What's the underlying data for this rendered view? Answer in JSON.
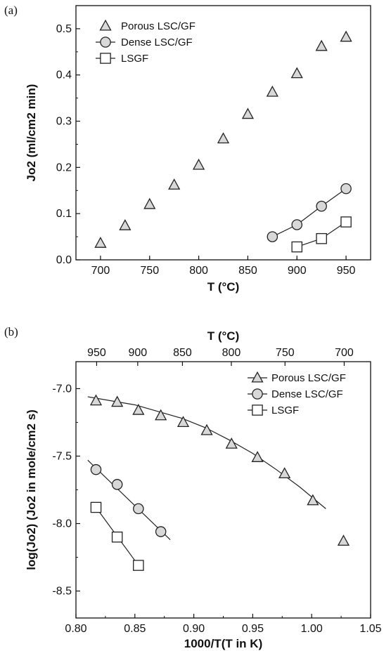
{
  "figure": {
    "panel_a_label": "(a)",
    "panel_b_label": "(b)",
    "marker_stroke": "#222222",
    "marker_fill": "#ffffff",
    "circle_fill": "#d8d8d8",
    "triangle_fill": "#d8d8d8"
  },
  "chart_data": [
    {
      "type": "scatter",
      "panel": "(a)",
      "xlabel": "T (°C)",
      "ylabel": "Jo2 (ml/cm2 min)",
      "xlim": [
        675,
        975
      ],
      "ylim": [
        0.0,
        0.55
      ],
      "xticks": [
        700,
        750,
        800,
        850,
        900,
        950
      ],
      "yticks": [
        0.0,
        0.1,
        0.2,
        0.3,
        0.4,
        0.5
      ],
      "xtick_labels": [
        "700",
        "750",
        "800",
        "850",
        "900",
        "950"
      ],
      "ytick_labels": [
        "0.0",
        "0.1",
        "0.2",
        "0.3",
        "0.4",
        "0.5"
      ],
      "legend_position": "top-left",
      "series": [
        {
          "name": "Porous LSC/GF",
          "marker": "triangle",
          "connected": false,
          "x": [
            700,
            725,
            750,
            775,
            800,
            825,
            850,
            875,
            900,
            925,
            950
          ],
          "y": [
            0.036,
            0.074,
            0.12,
            0.162,
            0.205,
            0.262,
            0.315,
            0.363,
            0.403,
            0.462,
            0.482
          ]
        },
        {
          "name": "Dense LSC/GF",
          "marker": "circle",
          "connected": true,
          "x": [
            875,
            900,
            925,
            950
          ],
          "y": [
            0.05,
            0.076,
            0.116,
            0.154
          ]
        },
        {
          "name": "LSGF",
          "marker": "square",
          "connected": true,
          "x": [
            900,
            925,
            950
          ],
          "y": [
            0.028,
            0.046,
            0.082
          ]
        }
      ]
    },
    {
      "type": "scatter",
      "panel": "(b)",
      "xlabel": "1000/T(T in K)",
      "ylabel": "log(Jo2) (Jo2 in mole/cm2 s)",
      "top_xlabel": "T (°C)",
      "xlim": [
        0.8,
        1.05
      ],
      "ylim": [
        -8.7,
        -6.8
      ],
      "xticks": [
        0.8,
        0.85,
        0.9,
        0.95,
        1.0,
        1.05
      ],
      "yticks": [
        -7.0,
        -7.5,
        -8.0,
        -8.5
      ],
      "xtick_labels": [
        "0.80",
        "0.85",
        "0.90",
        "0.95",
        "1.00",
        "1.05"
      ],
      "ytick_labels": [
        "-7.0",
        "-7.5",
        "-8.0",
        "-8.5"
      ],
      "top_ticks": [
        950,
        900,
        850,
        800,
        750,
        700
      ],
      "top_tick_labels": [
        "950",
        "900",
        "850",
        "800",
        "750",
        "700"
      ],
      "legend_position": "top-right",
      "series": [
        {
          "name": "Porous LSC/GF",
          "marker": "triangle",
          "x": [
            0.817,
            0.835,
            0.853,
            0.872,
            0.891,
            0.911,
            0.932,
            0.954,
            0.977,
            1.001,
            1.027
          ],
          "y": [
            -7.09,
            -7.1,
            -7.16,
            -7.2,
            -7.25,
            -7.31,
            -7.41,
            -7.51,
            -7.63,
            -7.83,
            -8.13
          ],
          "fit_curve": {
            "x": [
              0.81,
              0.85,
              0.89,
              0.91,
              0.93,
              0.95,
              0.97,
              0.99,
              1.012
            ],
            "y": [
              -7.06,
              -7.12,
              -7.22,
              -7.29,
              -7.38,
              -7.48,
              -7.6,
              -7.73,
              -7.89
            ]
          }
        },
        {
          "name": "Dense LSC/GF",
          "marker": "circle",
          "x": [
            0.817,
            0.835,
            0.853,
            0.872
          ],
          "y": [
            -7.6,
            -7.71,
            -7.89,
            -8.06
          ],
          "fit_line": {
            "x": [
              0.81,
              0.88
            ],
            "y": [
              -7.53,
              -8.12
            ]
          }
        },
        {
          "name": "LSGF",
          "marker": "square",
          "x": [
            0.817,
            0.835,
            0.853
          ],
          "y": [
            -7.88,
            -8.1,
            -8.31
          ],
          "fit_line": {
            "x": [
              0.817,
              0.853
            ],
            "y": [
              -7.88,
              -8.31
            ]
          }
        }
      ]
    }
  ]
}
